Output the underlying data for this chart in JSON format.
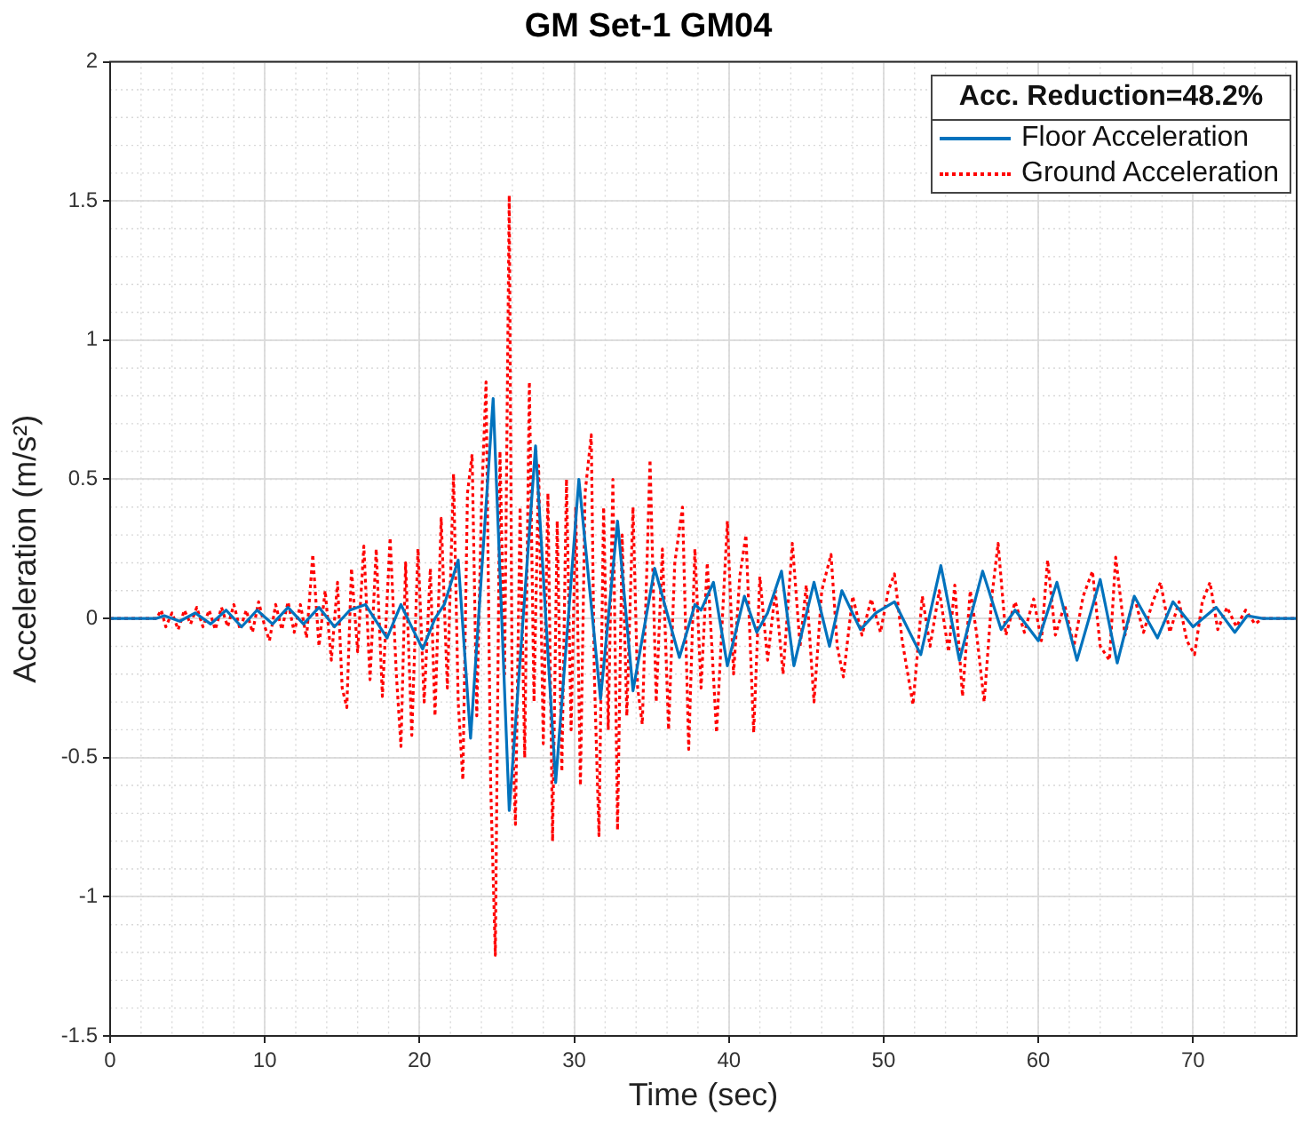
{
  "chart_data": {
    "type": "line",
    "title": "GM Set-1 GM04",
    "xlabel": "Time (sec)",
    "ylabel": "Acceleration (m/s²)",
    "legend_title": "Acc. Reduction=48.2%",
    "xlim": [
      0,
      76.7
    ],
    "xticks": [
      0,
      10,
      20,
      30,
      40,
      50,
      60,
      70
    ],
    "ylim": [
      -1.5,
      2
    ],
    "yticks": [
      -1.5,
      -1,
      -0.5,
      0,
      0.5,
      1,
      1.5,
      2
    ],
    "grid": true,
    "legend": "top right",
    "marker": "none",
    "series": [
      {
        "name": "Floor Acceleration",
        "color": "#0072bd",
        "line_style": "solid",
        "x": [
          0,
          3,
          3.5,
          4.5,
          5.5,
          6.5,
          7.5,
          8.5,
          9.5,
          10.5,
          11.5,
          12.5,
          13.5,
          14.5,
          15.5,
          16.5,
          17.9,
          18.8,
          19.4,
          20.2,
          21.0,
          21.6,
          22.5,
          23.3,
          24.76,
          25.8,
          27.5,
          28.8,
          30.3,
          31.7,
          32.8,
          33.8,
          35.2,
          36.8,
          37.8,
          38.2,
          39.0,
          39.9,
          41.0,
          41.8,
          42.5,
          43.4,
          44.2,
          45.5,
          46.5,
          47.3,
          48.5,
          49.5,
          50.7,
          52.4,
          53.7,
          54.9,
          56.4,
          57.6,
          58.5,
          60.0,
          61.2,
          62.5,
          64.0,
          65.1,
          66.2,
          67.7,
          68.7,
          70.0,
          71.5,
          72.7,
          73.5,
          74.5,
          76.7
        ],
        "values": [
          0,
          0,
          0.01,
          -0.01,
          0.02,
          -0.02,
          0.03,
          -0.03,
          0.03,
          -0.02,
          0.04,
          -0.02,
          0.04,
          -0.03,
          0.03,
          0.05,
          -0.07,
          0.05,
          -0.02,
          -0.11,
          0.0,
          0.05,
          0.21,
          -0.43,
          0.79,
          -0.69,
          0.62,
          -0.59,
          0.5,
          -0.29,
          0.35,
          -0.26,
          0.18,
          -0.14,
          0.05,
          0.03,
          0.13,
          -0.17,
          0.08,
          -0.05,
          0.02,
          0.17,
          -0.17,
          0.13,
          -0.1,
          0.1,
          -0.04,
          0.02,
          0.06,
          -0.13,
          0.19,
          -0.15,
          0.17,
          -0.04,
          0.03,
          -0.08,
          0.13,
          -0.15,
          0.14,
          -0.16,
          0.08,
          -0.07,
          0.06,
          -0.03,
          0.04,
          -0.05,
          0.01,
          0,
          0
        ]
      },
      {
        "name": "Ground Acceleration",
        "color": "#ff0000",
        "line_style": "dotted",
        "x": [
          0,
          3,
          3.3,
          3.6,
          4.0,
          4.4,
          4.8,
          5.2,
          5.6,
          6.0,
          6.4,
          6.8,
          7.2,
          7.6,
          8.0,
          8.4,
          8.8,
          9.2,
          9.6,
          10.0,
          10.3,
          10.7,
          11.1,
          11.5,
          11.9,
          12.3,
          12.7,
          13.1,
          13.5,
          13.9,
          14.3,
          14.7,
          15.0,
          15.3,
          15.6,
          16.0,
          16.4,
          16.8,
          17.2,
          17.6,
          18.1,
          18.5,
          18.8,
          19.1,
          19.5,
          19.9,
          20.3,
          20.7,
          21.0,
          21.4,
          21.8,
          22.2,
          22.5,
          22.8,
          23.1,
          23.4,
          23.7,
          24.0,
          24.3,
          24.6,
          24.9,
          25.2,
          25.5,
          25.8,
          26.0,
          26.2,
          26.5,
          26.8,
          27.1,
          27.4,
          27.7,
          28.0,
          28.3,
          28.6,
          28.9,
          29.2,
          29.5,
          29.8,
          30.1,
          30.4,
          30.7,
          31.1,
          31.3,
          31.6,
          31.9,
          32.2,
          32.5,
          32.8,
          33.1,
          33.4,
          33.8,
          34.1,
          34.4,
          34.9,
          35.3,
          35.7,
          36.1,
          36.5,
          37.0,
          37.4,
          37.8,
          38.2,
          38.6,
          39.2,
          39.9,
          40.3,
          40.7,
          41.1,
          41.6,
          42.0,
          42.5,
          43.0,
          43.5,
          44.1,
          44.6,
          45.0,
          45.5,
          46.0,
          46.6,
          47.0,
          47.4,
          48.0,
          48.6,
          49.2,
          49.8,
          50.3,
          50.7,
          51.2,
          51.9,
          52.5,
          53.0,
          53.6,
          54.2,
          54.6,
          55.1,
          55.6,
          56.0,
          56.5,
          57.0,
          57.4,
          57.9,
          58.5,
          59.1,
          59.7,
          60.2,
          60.6,
          61.1,
          61.7,
          62.3,
          62.9,
          63.5,
          64.0,
          64.6,
          65.0,
          65.6,
          66.2,
          66.8,
          67.4,
          67.9,
          68.5,
          69.1,
          69.6,
          70.1,
          70.6,
          71.1,
          71.6,
          72.2,
          72.8,
          73.4,
          74.0,
          74.5,
          76.7
        ],
        "values": [
          0,
          0,
          0.03,
          -0.03,
          0.02,
          -0.04,
          0.03,
          -0.02,
          0.04,
          -0.03,
          0.03,
          -0.04,
          0.04,
          -0.03,
          0.05,
          -0.04,
          0.03,
          -0.05,
          0.06,
          -0.03,
          -0.08,
          0.05,
          -0.04,
          0.06,
          -0.05,
          0.05,
          -0.07,
          0.23,
          -0.1,
          0.1,
          -0.15,
          0.13,
          -0.25,
          -0.32,
          0.18,
          -0.12,
          0.26,
          -0.22,
          0.25,
          -0.28,
          0.29,
          -0.2,
          -0.46,
          0.2,
          -0.42,
          0.25,
          -0.3,
          0.18,
          -0.35,
          0.36,
          -0.25,
          0.52,
          -0.3,
          -0.58,
          0.45,
          0.59,
          -0.35,
          0.4,
          0.85,
          -0.6,
          -1.21,
          0.6,
          -0.2,
          1.52,
          -0.4,
          -0.74,
          0.4,
          -0.5,
          0.85,
          -0.3,
          0.55,
          -0.45,
          0.45,
          -0.8,
          0.35,
          -0.55,
          0.5,
          -0.4,
          0.4,
          -0.6,
          0.45,
          0.66,
          -0.2,
          -0.78,
          0.4,
          -0.4,
          0.5,
          -0.76,
          0.3,
          -0.35,
          0.4,
          -0.25,
          -0.38,
          0.57,
          -0.3,
          0.25,
          -0.4,
          0.2,
          0.4,
          -0.47,
          0.25,
          -0.25,
          0.2,
          -0.41,
          0.35,
          -0.2,
          0.15,
          0.3,
          -0.41,
          0.15,
          -0.15,
          0.1,
          -0.2,
          0.27,
          -0.1,
          0.12,
          -0.3,
          0.1,
          0.23,
          -0.1,
          -0.21,
          0.08,
          -0.06,
          0.07,
          -0.05,
          0.1,
          0.16,
          -0.08,
          -0.31,
          0.08,
          -0.1,
          0.1,
          -0.12,
          0.12,
          -0.28,
          0.1,
          -0.05,
          -0.3,
          0.08,
          0.27,
          -0.06,
          0.06,
          -0.05,
          0.07,
          -0.08,
          0.21,
          -0.06,
          0.05,
          -0.1,
          0.08,
          0.17,
          -0.1,
          -0.15,
          0.22,
          -0.06,
          0.08,
          -0.05,
          0.06,
          0.13,
          -0.05,
          0.06,
          -0.08,
          -0.13,
          0.06,
          0.13,
          -0.04,
          0.04,
          -0.03,
          0.03,
          -0.02,
          0,
          0
        ]
      }
    ]
  }
}
